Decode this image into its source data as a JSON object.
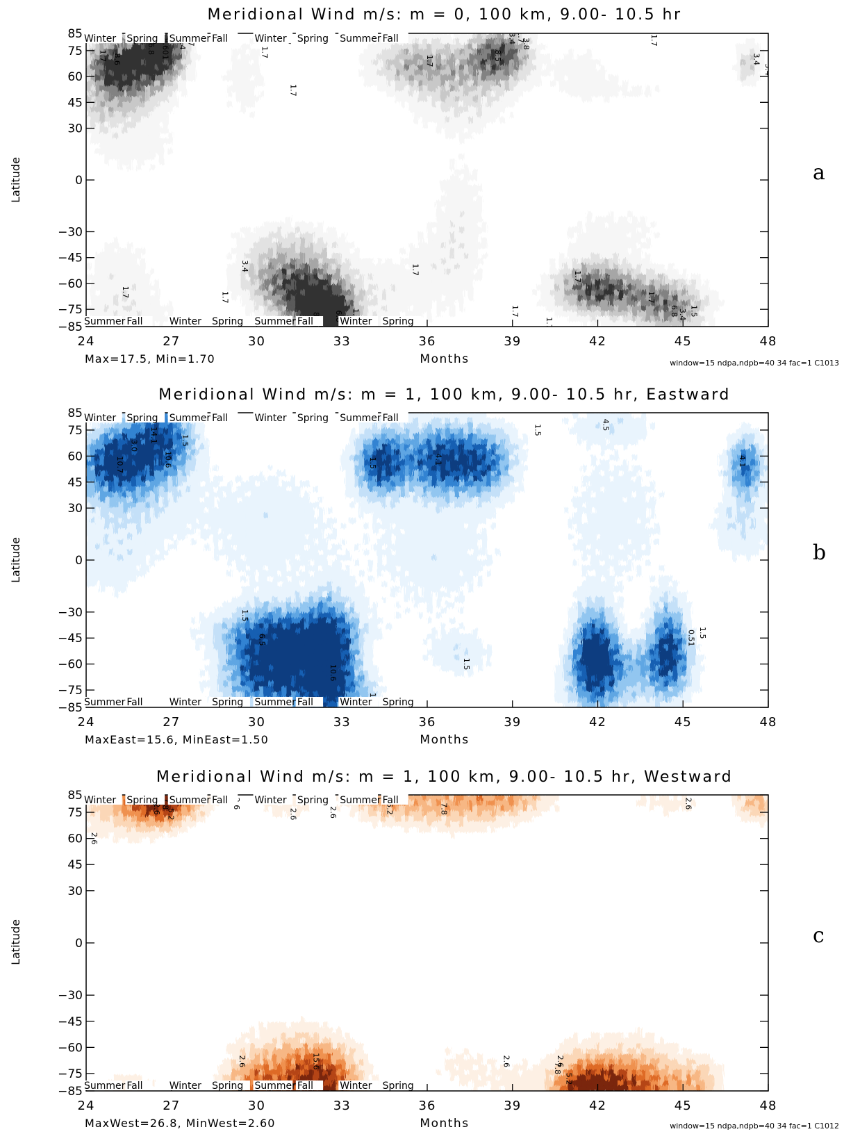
{
  "chart_data": [
    {
      "id": "a",
      "type": "heatmap",
      "title": "Meridional Wind m/s: m = 0, 100 km, 9.00- 10.5 hr",
      "xlabel": "Months",
      "ylabel": "Latitude",
      "xlim": [
        24,
        48
      ],
      "ylim": [
        -85,
        85
      ],
      "x_ticks": [
        24,
        27,
        30,
        33,
        36,
        39,
        42,
        45,
        48
      ],
      "y_ticks": [
        85,
        75,
        60,
        45,
        30,
        0,
        -30,
        -45,
        -60,
        -75,
        -85
      ],
      "season_labels_top": [
        "Winter",
        "Spring",
        "Summer",
        "Fall",
        "Winter",
        "Spring",
        "Summer",
        "Fall"
      ],
      "season_labels_bottom": [
        "Summer",
        "Fall",
        "Winter",
        "Spring",
        "Summer",
        "Fall",
        "Winter",
        "Spring"
      ],
      "footer_left": "Max=17.5, Min=1.70",
      "footer_right": "window=15 ndpa,ndpb=40 34 fac=1  C1013",
      "panel_letter": "a",
      "contour_interval": 1.7,
      "max": 17.5,
      "min": 1.7,
      "colors": [
        "#f6f6f6",
        "#e2e2e2",
        "#c8c8c8",
        "#a6a6a6",
        "#828282",
        "#5a5a5a",
        "#333333"
      ],
      "blobs": [
        {
          "x": 25.0,
          "y": 66,
          "sx": 0.7,
          "sy": 11,
          "v": 13.0
        },
        {
          "x": 26.6,
          "y": 76,
          "sx": 0.6,
          "sy": 9,
          "v": 15.5
        },
        {
          "x": 26.2,
          "y": 60,
          "sx": 0.8,
          "sy": 10,
          "v": 6.5
        },
        {
          "x": 24.7,
          "y": 42,
          "sx": 1.2,
          "sy": 10,
          "v": 4.0
        },
        {
          "x": 25.6,
          "y": 20,
          "sx": 1.3,
          "sy": 14,
          "v": 2.4
        },
        {
          "x": 25.2,
          "y": -55,
          "sx": 1.0,
          "sy": 18,
          "v": 2.8
        },
        {
          "x": 25.8,
          "y": -78,
          "sx": 1.5,
          "sy": 9,
          "v": 2.0
        },
        {
          "x": 29.6,
          "y": 60,
          "sx": 0.7,
          "sy": 22,
          "v": 2.4
        },
        {
          "x": 31.8,
          "y": -60,
          "sx": 1.2,
          "sy": 15,
          "v": 7.0
        },
        {
          "x": 32.6,
          "y": -80,
          "sx": 0.5,
          "sy": 8,
          "v": 15.5
        },
        {
          "x": 32.0,
          "y": -72,
          "sx": 0.8,
          "sy": 10,
          "v": 9.0
        },
        {
          "x": 30.6,
          "y": -55,
          "sx": 1.0,
          "sy": 12,
          "v": 4.5
        },
        {
          "x": 31.0,
          "y": -32,
          "sx": 1.5,
          "sy": 8,
          "v": 2.2
        },
        {
          "x": 34.2,
          "y": -70,
          "sx": 0.8,
          "sy": 14,
          "v": 2.0
        },
        {
          "x": 36.7,
          "y": 65,
          "sx": 1.5,
          "sy": 12,
          "v": 5.5
        },
        {
          "x": 38.6,
          "y": 73,
          "sx": 0.7,
          "sy": 11,
          "v": 10.0
        },
        {
          "x": 35.2,
          "y": 68,
          "sx": 1.0,
          "sy": 10,
          "v": 3.5
        },
        {
          "x": 37.2,
          "y": 42,
          "sx": 1.3,
          "sy": 12,
          "v": 3.0
        },
        {
          "x": 37.2,
          "y": -15,
          "sx": 0.7,
          "sy": 25,
          "v": 2.4
        },
        {
          "x": 36.3,
          "y": -55,
          "sx": 1.2,
          "sy": 22,
          "v": 2.6
        },
        {
          "x": 41.4,
          "y": 62,
          "sx": 0.9,
          "sy": 14,
          "v": 2.4
        },
        {
          "x": 42.8,
          "y": -66,
          "sx": 1.6,
          "sy": 10,
          "v": 7.5
        },
        {
          "x": 41.8,
          "y": -60,
          "sx": 0.8,
          "sy": 10,
          "v": 6.0
        },
        {
          "x": 44.6,
          "y": -76,
          "sx": 0.9,
          "sy": 10,
          "v": 6.5
        },
        {
          "x": 42.5,
          "y": -30,
          "sx": 1.6,
          "sy": 12,
          "v": 2.4
        },
        {
          "x": 43.5,
          "y": 52,
          "sx": 1.2,
          "sy": 6,
          "v": 1.8
        },
        {
          "x": 47.3,
          "y": 68,
          "sx": 0.35,
          "sy": 9,
          "v": 5.0
        }
      ],
      "contour_labels": [
        {
          "x": 24.5,
          "y": 72,
          "t": "1.7"
        },
        {
          "x": 25.0,
          "y": 70,
          "t": "8.6"
        },
        {
          "x": 26.2,
          "y": 76,
          "t": "6.8"
        },
        {
          "x": 26.7,
          "y": 76,
          "t": "8.601"
        },
        {
          "x": 27.3,
          "y": 79,
          "t": "3.4"
        },
        {
          "x": 27.6,
          "y": 81,
          "t": "1.7"
        },
        {
          "x": 30.2,
          "y": 74,
          "t": "1.7"
        },
        {
          "x": 31.2,
          "y": 52,
          "t": "1.7"
        },
        {
          "x": 31.0,
          "y": 82,
          "t": "1.7"
        },
        {
          "x": 29.5,
          "y": -50,
          "t": "3.4"
        },
        {
          "x": 28.8,
          "y": -68,
          "t": "1.7"
        },
        {
          "x": 32.0,
          "y": -80,
          "t": "8.9"
        },
        {
          "x": 32.8,
          "y": -79,
          "t": "6.8"
        },
        {
          "x": 33.4,
          "y": -78,
          "t": "1.7"
        },
        {
          "x": 25.3,
          "y": -65,
          "t": "1.7"
        },
        {
          "x": 36.0,
          "y": 69,
          "t": "1.7"
        },
        {
          "x": 38.4,
          "y": 72,
          "t": "8.5"
        },
        {
          "x": 38.9,
          "y": 82,
          "t": "3.4"
        },
        {
          "x": 39.2,
          "y": 83,
          "t": "1.7"
        },
        {
          "x": 39.4,
          "y": 79,
          "t": "3.8"
        },
        {
          "x": 35.5,
          "y": -52,
          "t": "1.7"
        },
        {
          "x": 39.0,
          "y": -76,
          "t": "1.7"
        },
        {
          "x": 40.2,
          "y": -83,
          "t": "1.7"
        },
        {
          "x": 41.2,
          "y": -56,
          "t": "1.7"
        },
        {
          "x": 43.8,
          "y": -68,
          "t": "1.7"
        },
        {
          "x": 44.6,
          "y": -76,
          "t": "6.8"
        },
        {
          "x": 44.9,
          "y": -78,
          "t": "3.4"
        },
        {
          "x": 45.3,
          "y": -76,
          "t": "1.5"
        },
        {
          "x": 43.9,
          "y": 81,
          "t": "1.7"
        },
        {
          "x": 47.5,
          "y": 70,
          "t": "3.4"
        },
        {
          "x": 47.9,
          "y": 64,
          "t": "3.4"
        }
      ]
    },
    {
      "id": "b",
      "type": "heatmap",
      "title": "Meridional Wind m/s: m = 1, 100 km, 9.00- 10.5 hr, Eastward",
      "xlabel": "Months",
      "ylabel": "Latitude",
      "xlim": [
        24,
        48
      ],
      "ylim": [
        -85,
        85
      ],
      "x_ticks": [
        24,
        27,
        30,
        33,
        36,
        39,
        42,
        45,
        48
      ],
      "y_ticks": [
        85,
        75,
        60,
        45,
        30,
        0,
        -30,
        -45,
        -60,
        -75,
        -85
      ],
      "season_labels_top": [
        "Winter",
        "Spring",
        "Summer",
        "Fall",
        "Winter",
        "Spring",
        "Summer",
        "Fall"
      ],
      "season_labels_bottom": [
        "Summer",
        "Fall",
        "Winter",
        "Spring",
        "Summer",
        "Fall",
        "Winter",
        "Spring"
      ],
      "footer_left": "MaxEast=15.6, MinEast=1.50",
      "footer_right": "",
      "panel_letter": "b",
      "contour_interval": 1.5,
      "max": 15.6,
      "min": 1.5,
      "colors": [
        "#e9f4fd",
        "#c4e0f8",
        "#92c6f0",
        "#5fa6e3",
        "#3383d2",
        "#165fb2",
        "#0a3d80"
      ],
      "blobs": [
        {
          "x": 25.0,
          "y": 57,
          "sx": 0.8,
          "sy": 13,
          "v": 11.5
        },
        {
          "x": 26.6,
          "y": 68,
          "sx": 0.8,
          "sy": 15,
          "v": 11.0
        },
        {
          "x": 25.4,
          "y": 30,
          "sx": 1.6,
          "sy": 18,
          "v": 2.8
        },
        {
          "x": 24.8,
          "y": -5,
          "sx": 1.2,
          "sy": 15,
          "v": 2.0
        },
        {
          "x": 30.2,
          "y": -55,
          "sx": 0.9,
          "sy": 15,
          "v": 9.5
        },
        {
          "x": 32.6,
          "y": -60,
          "sx": 0.6,
          "sy": 24,
          "v": 11.5
        },
        {
          "x": 31.6,
          "y": -52,
          "sx": 0.9,
          "sy": 14,
          "v": 8.0
        },
        {
          "x": 31.2,
          "y": -74,
          "sx": 1.8,
          "sy": 10,
          "v": 5.5
        },
        {
          "x": 30.8,
          "y": -40,
          "sx": 2.2,
          "sy": 10,
          "v": 3.0
        },
        {
          "x": 30.4,
          "y": 20,
          "sx": 1.8,
          "sy": 30,
          "v": 2.4
        },
        {
          "x": 34.4,
          "y": 55,
          "sx": 0.6,
          "sy": 12,
          "v": 10.5
        },
        {
          "x": 36.5,
          "y": 55,
          "sx": 0.8,
          "sy": 12,
          "v": 9.0
        },
        {
          "x": 38.0,
          "y": 55,
          "sx": 0.7,
          "sy": 12,
          "v": 7.5
        },
        {
          "x": 36.4,
          "y": 70,
          "sx": 1.8,
          "sy": 12,
          "v": 3.0
        },
        {
          "x": 36.3,
          "y": 5,
          "sx": 1.8,
          "sy": 30,
          "v": 2.4
        },
        {
          "x": 37.2,
          "y": -55,
          "sx": 0.9,
          "sy": 10,
          "v": 2.4
        },
        {
          "x": 33.9,
          "y": -78,
          "sx": 0.25,
          "sy": 8,
          "v": 2.0
        },
        {
          "x": 41.9,
          "y": -55,
          "sx": 0.5,
          "sy": 18,
          "v": 12.5
        },
        {
          "x": 44.5,
          "y": -50,
          "sx": 0.45,
          "sy": 18,
          "v": 9.5
        },
        {
          "x": 43.2,
          "y": -60,
          "sx": 1.5,
          "sy": 10,
          "v": 5.0
        },
        {
          "x": 42.5,
          "y": -78,
          "sx": 1.6,
          "sy": 8,
          "v": 2.6
        },
        {
          "x": 42.6,
          "y": 25,
          "sx": 1.6,
          "sy": 35,
          "v": 2.2
        },
        {
          "x": 42.4,
          "y": 78,
          "sx": 1.2,
          "sy": 7,
          "v": 2.0
        },
        {
          "x": 47.2,
          "y": 55,
          "sx": 0.45,
          "sy": 12,
          "v": 8.5
        },
        {
          "x": 47.1,
          "y": 20,
          "sx": 0.8,
          "sy": 15,
          "v": 3.0
        }
      ],
      "contour_labels": [
        {
          "x": 25.1,
          "y": 55,
          "t": "10.7"
        },
        {
          "x": 25.6,
          "y": 66,
          "t": "3.0"
        },
        {
          "x": 26.3,
          "y": 72,
          "t": "14.1"
        },
        {
          "x": 26.8,
          "y": 58,
          "t": "10.6"
        },
        {
          "x": 27.4,
          "y": 69,
          "t": "1.5"
        },
        {
          "x": 29.5,
          "y": -32,
          "t": "1.5"
        },
        {
          "x": 30.1,
          "y": -46,
          "t": "6.5"
        },
        {
          "x": 32.6,
          "y": -65,
          "t": "10.6"
        },
        {
          "x": 34.0,
          "y": 56,
          "t": "1.5"
        },
        {
          "x": 36.3,
          "y": 58,
          "t": "4.1"
        },
        {
          "x": 39.8,
          "y": 75,
          "t": "1.5"
        },
        {
          "x": 37.3,
          "y": -60,
          "t": "1.5"
        },
        {
          "x": 34.0,
          "y": -80,
          "t": "1.5"
        },
        {
          "x": 42.2,
          "y": 78,
          "t": "4.5"
        },
        {
          "x": 45.6,
          "y": -42,
          "t": "1.5"
        },
        {
          "x": 45.2,
          "y": -45,
          "t": "0.51"
        },
        {
          "x": 47.0,
          "y": 57,
          "t": "4.1"
        }
      ]
    },
    {
      "id": "c",
      "type": "heatmap",
      "title": "Meridional Wind m/s: m = 1, 100 km, 9.00- 10.5 hr, Westward",
      "xlabel": "Months",
      "ylabel": "Latitude",
      "xlim": [
        24,
        48
      ],
      "ylim": [
        -85,
        85
      ],
      "x_ticks": [
        24,
        27,
        30,
        33,
        36,
        39,
        42,
        45,
        48
      ],
      "y_ticks": [
        85,
        75,
        60,
        45,
        30,
        0,
        -30,
        -45,
        -60,
        -75,
        -85
      ],
      "season_labels_top": [
        "Winter",
        "Spring",
        "Summer",
        "Fall",
        "Winter",
        "Spring",
        "Summer",
        "Fall"
      ],
      "season_labels_bottom": [
        "Summer",
        "Fall",
        "Winter",
        "Spring",
        "Summer",
        "Fall",
        "Winter",
        "Spring"
      ],
      "footer_left": "MaxWest=26.8, MinWest=2.60",
      "footer_right": "window=15 ndpa,ndpb=40 34 fac=1  C1012",
      "panel_letter": "c",
      "contour_interval": 2.6,
      "max": 26.8,
      "min": 2.6,
      "colors": [
        "#fdf0e4",
        "#fbd7b7",
        "#f7b784",
        "#ef914f",
        "#de6a27",
        "#b54414",
        "#7a2508"
      ],
      "blobs": [
        {
          "x": 26.5,
          "y": 84,
          "sx": 0.7,
          "sy": 10,
          "v": 17.0
        },
        {
          "x": 25.3,
          "y": 80,
          "sx": 1.4,
          "sy": 14,
          "v": 7.0
        },
        {
          "x": 27.5,
          "y": 82,
          "sx": 0.8,
          "sy": 8,
          "v": 5.0
        },
        {
          "x": 31.0,
          "y": 80,
          "sx": 1.0,
          "sy": 8,
          "v": 3.2
        },
        {
          "x": 36.7,
          "y": 82,
          "sx": 1.8,
          "sy": 12,
          "v": 9.0
        },
        {
          "x": 34.4,
          "y": 83,
          "sx": 0.8,
          "sy": 7,
          "v": 6.5
        },
        {
          "x": 39.0,
          "y": 83,
          "sx": 1.0,
          "sy": 7,
          "v": 6.0
        },
        {
          "x": 44.4,
          "y": 80,
          "sx": 1.3,
          "sy": 7,
          "v": 3.2
        },
        {
          "x": 47.6,
          "y": 82,
          "sx": 0.5,
          "sy": 9,
          "v": 8.5
        },
        {
          "x": 30.0,
          "y": -85,
          "sx": 0.8,
          "sy": 11,
          "v": 14.0
        },
        {
          "x": 32.3,
          "y": -83,
          "sx": 0.9,
          "sy": 13,
          "v": 18.0
        },
        {
          "x": 31.4,
          "y": -70,
          "sx": 1.2,
          "sy": 10,
          "v": 5.5
        },
        {
          "x": 31.2,
          "y": -55,
          "sx": 1.8,
          "sy": 12,
          "v": 3.0
        },
        {
          "x": 25.6,
          "y": -82,
          "sx": 1.0,
          "sy": 8,
          "v": 3.5
        },
        {
          "x": 37.2,
          "y": -72,
          "sx": 1.0,
          "sy": 14,
          "v": 3.0
        },
        {
          "x": 39.2,
          "y": -82,
          "sx": 0.8,
          "sy": 10,
          "v": 3.0
        },
        {
          "x": 41.2,
          "y": -85,
          "sx": 0.6,
          "sy": 11,
          "v": 15.0
        },
        {
          "x": 42.2,
          "y": -85,
          "sx": 0.6,
          "sy": 11,
          "v": 17.0
        },
        {
          "x": 43.6,
          "y": -84,
          "sx": 0.9,
          "sy": 12,
          "v": 14.0
        },
        {
          "x": 42.6,
          "y": -62,
          "sx": 2.0,
          "sy": 12,
          "v": 3.2
        },
        {
          "x": 45.5,
          "y": -82,
          "sx": 0.6,
          "sy": 10,
          "v": 8.0
        }
      ],
      "contour_labels": [
        {
          "x": 24.2,
          "y": 60,
          "t": "2.6"
        },
        {
          "x": 26.7,
          "y": 80,
          "t": "7.8"
        },
        {
          "x": 26.4,
          "y": 77,
          "t": "2.6"
        },
        {
          "x": 26.9,
          "y": 74,
          "t": "5.2"
        },
        {
          "x": 29.2,
          "y": 80,
          "t": "2.6"
        },
        {
          "x": 30.0,
          "y": 83,
          "t": "2.6"
        },
        {
          "x": 31.2,
          "y": 74,
          "t": "2.6"
        },
        {
          "x": 32.6,
          "y": 75,
          "t": "2.6"
        },
        {
          "x": 34.6,
          "y": 77,
          "t": "5.2"
        },
        {
          "x": 36.5,
          "y": 77,
          "t": "7.8"
        },
        {
          "x": 45.1,
          "y": 80,
          "t": "2.6"
        },
        {
          "x": 29.4,
          "y": -68,
          "t": "2.6"
        },
        {
          "x": 32.0,
          "y": -68,
          "t": "15.6"
        },
        {
          "x": 38.7,
          "y": -68,
          "t": "2.6"
        },
        {
          "x": 40.6,
          "y": -68,
          "t": "2.6"
        },
        {
          "x": 40.9,
          "y": -78,
          "t": "5.2"
        },
        {
          "x": 40.5,
          "y": -72,
          "t": "7.8"
        }
      ]
    }
  ]
}
